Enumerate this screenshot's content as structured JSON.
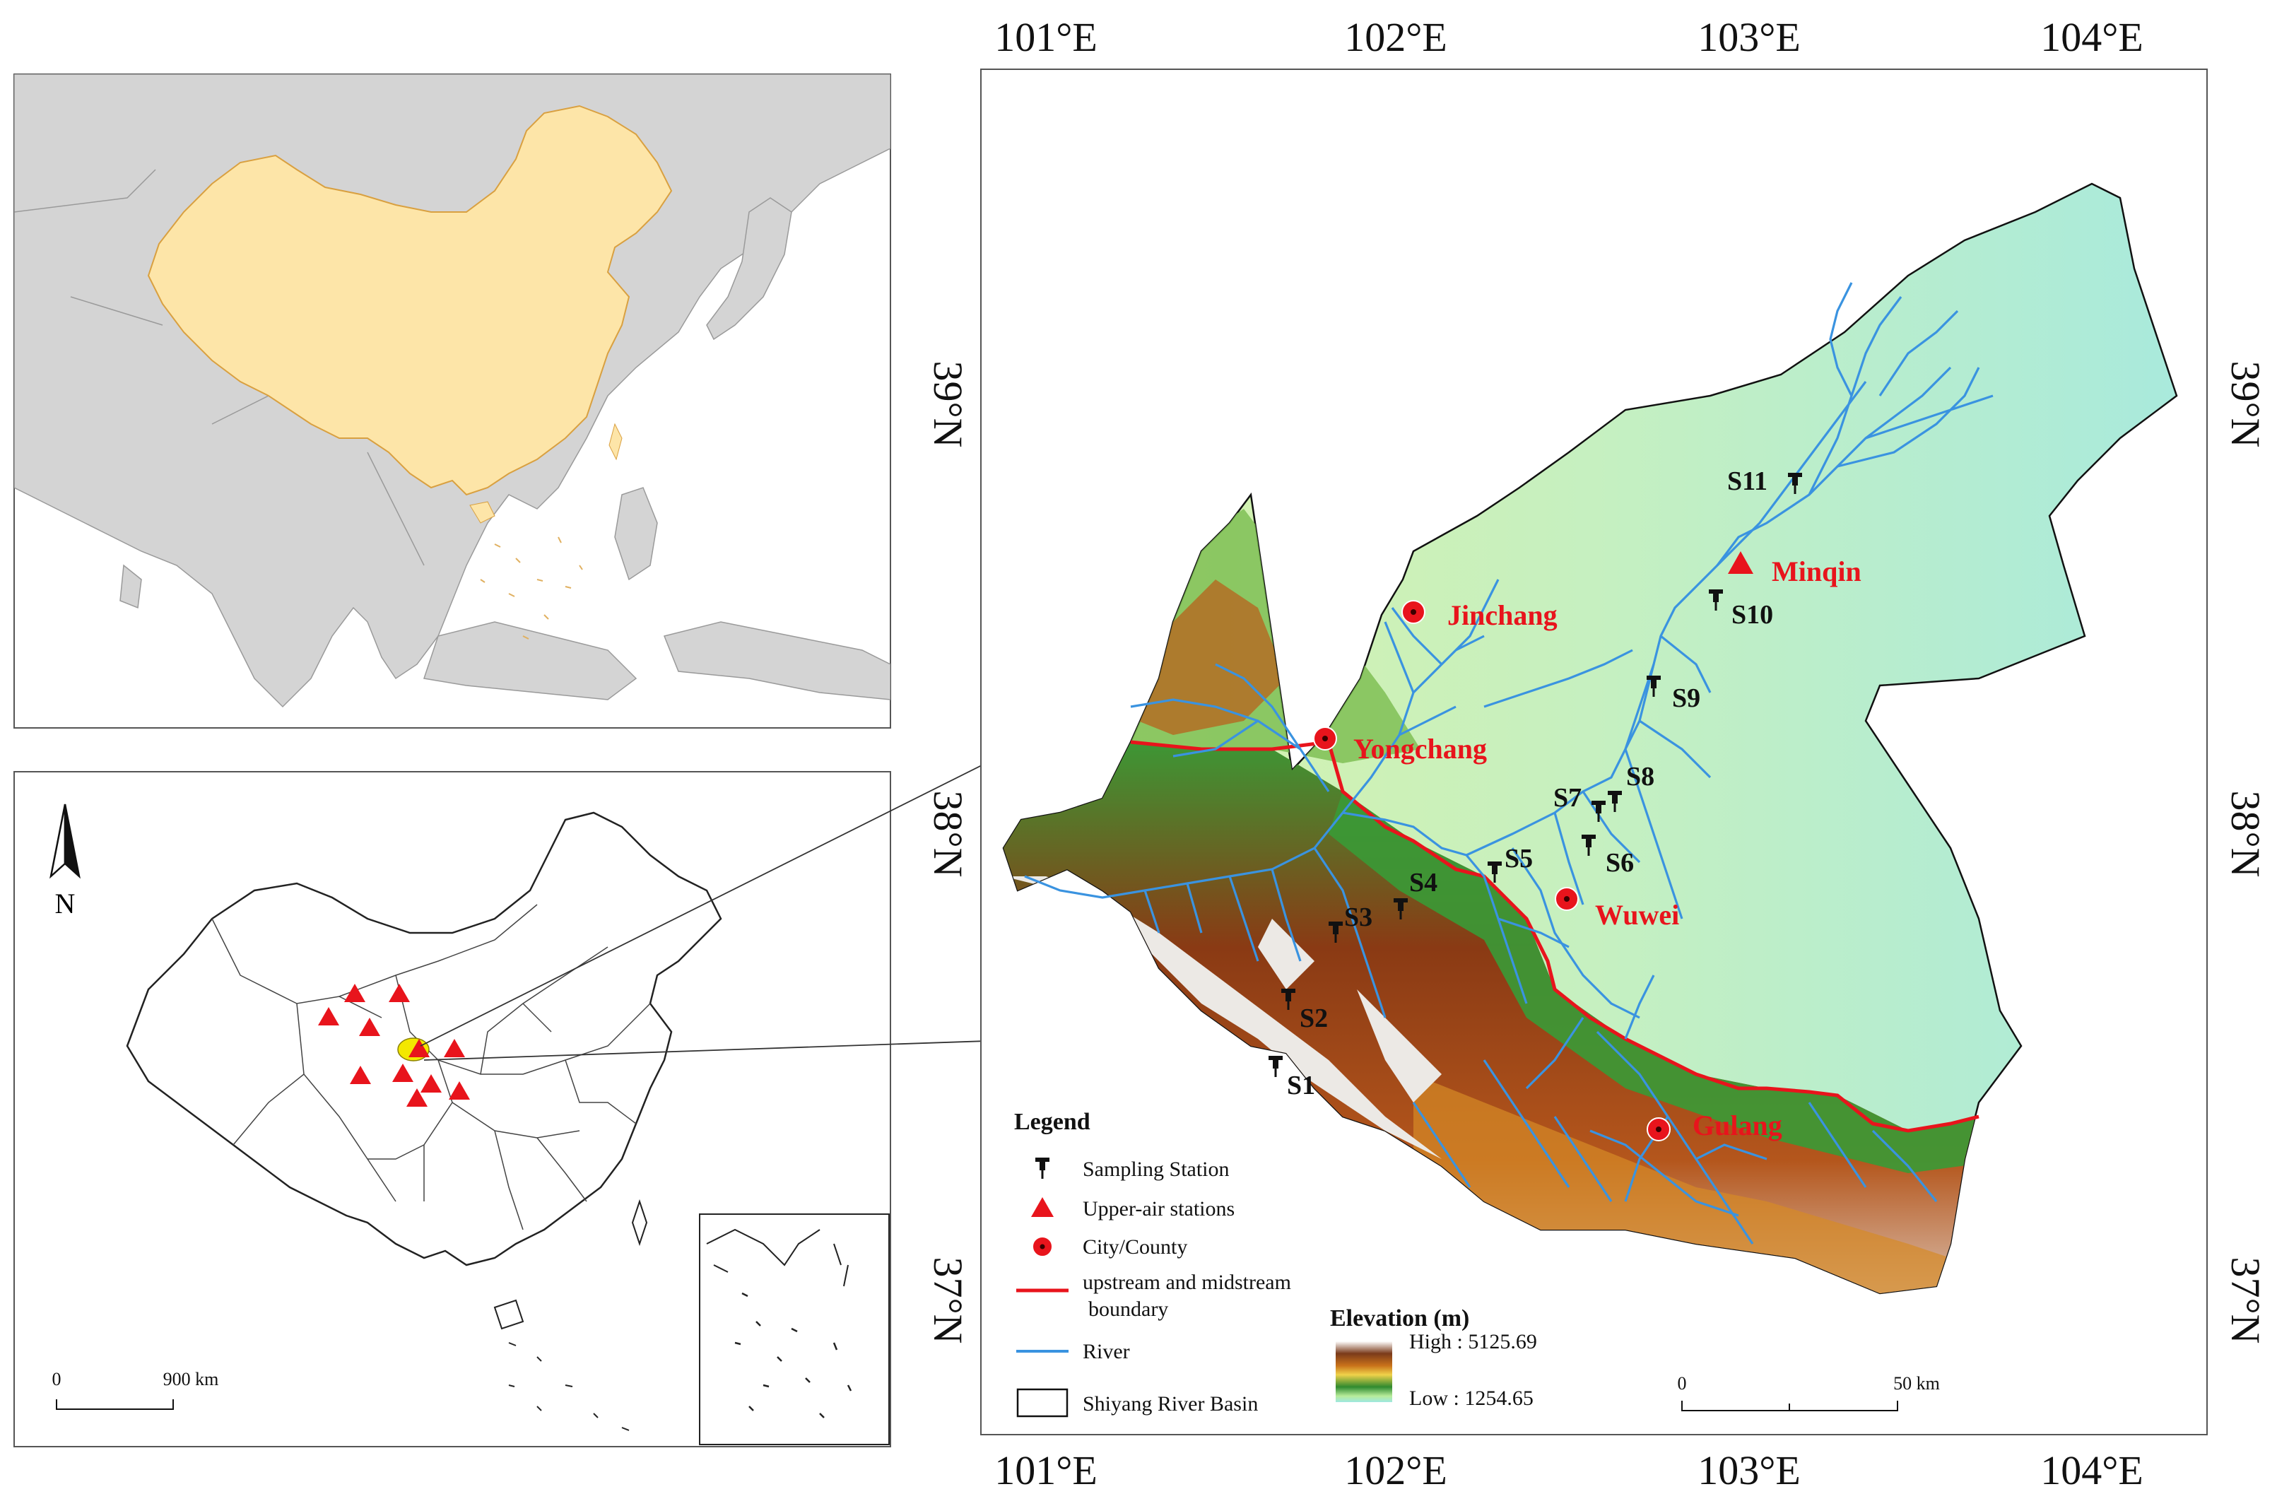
{
  "main_map": {
    "lon_ticks": [
      "101°E",
      "102°E",
      "103°E",
      "104°E"
    ],
    "lat_ticks": [
      "39°N",
      "38°N",
      "37°N"
    ],
    "stations": [
      "S1",
      "S2",
      "S3",
      "S4",
      "S5",
      "S6",
      "S7",
      "S8",
      "S9",
      "S10",
      "S11"
    ],
    "cities": [
      "Jinchang",
      "Yongchang",
      "Wuwei",
      "Gulang",
      "Minqin"
    ]
  },
  "legend": {
    "title": "Legend",
    "sampling_station": "Sampling Station",
    "upper_air": "Upper-air stations",
    "city": "City/County",
    "boundary_line1": "upstream and midstream",
    "boundary_line2": "boundary",
    "river": "River",
    "basin": "Shiyang River Basin"
  },
  "elevation": {
    "title": "Elevation (m)",
    "high": "High : 5125.69",
    "low": "Low : 1254.65"
  },
  "scale_main": {
    "zero": "0",
    "dist": "50 km"
  },
  "scale_china": {
    "zero": "0",
    "dist": "900 km"
  },
  "north_label": "N",
  "colors": {
    "boundary": "#e8141c",
    "river": "#3a93e0",
    "china_fill": "#fde5a8",
    "land_grey": "#d4d4d4",
    "sea": "#ffffff"
  }
}
